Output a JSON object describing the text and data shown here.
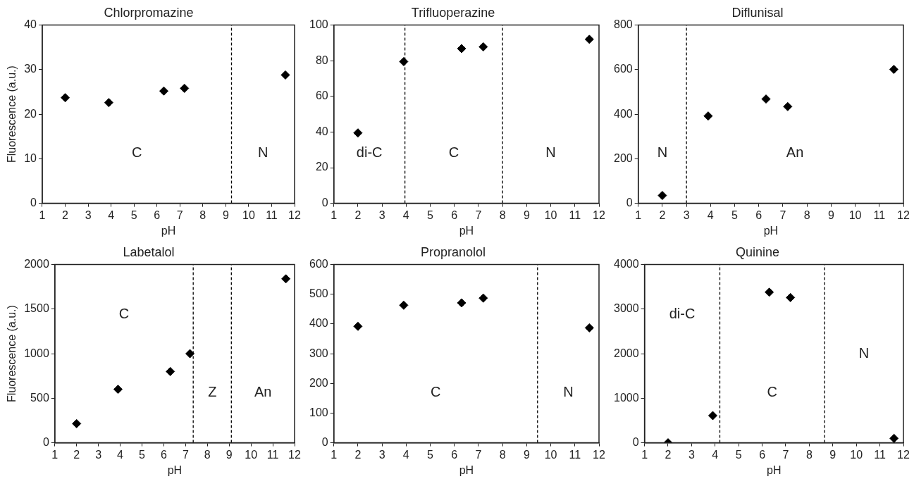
{
  "chart_data": [
    {
      "type": "scatter",
      "title": "Chlorpromazine",
      "xlabel": "pH",
      "ylabel": "Fluorescence (a.u.)",
      "x": [
        2,
        3.9,
        6.3,
        7.2,
        11.6
      ],
      "values": [
        23.7,
        22.6,
        25.2,
        25.8,
        28.8
      ],
      "color": "#000000",
      "marker": "diamond",
      "xlim": [
        1,
        12
      ],
      "xticks": [
        1,
        2,
        3,
        4,
        5,
        6,
        7,
        8,
        9,
        10,
        11,
        12
      ],
      "ylim": [
        0,
        40
      ],
      "yticks": [
        0,
        10,
        20,
        30,
        40
      ],
      "grid": false,
      "legend": false,
      "ref_lines": [
        {
          "axis": "x",
          "value": 9.25,
          "line_style": "dashed",
          "color": "#000000"
        }
      ],
      "annotations": [
        "C",
        "N"
      ]
    },
    {
      "type": "scatter",
      "title": "Trifluoperazine",
      "xlabel": "pH",
      "x": [
        2,
        3.9,
        6.3,
        7.2,
        11.6
      ],
      "values": [
        39.5,
        79.5,
        86.8,
        87.8,
        92
      ],
      "color": "#000000",
      "marker": "diamond",
      "xlim": [
        1,
        12
      ],
      "xticks": [
        1,
        2,
        3,
        4,
        5,
        6,
        7,
        8,
        9,
        10,
        11,
        12
      ],
      "ylim": [
        0,
        100
      ],
      "yticks": [
        0,
        20,
        40,
        60,
        80,
        100
      ],
      "grid": false,
      "legend": false,
      "ref_lines": [
        {
          "axis": "x",
          "value": 3.95,
          "line_style": "dashed",
          "color": "#000000"
        },
        {
          "axis": "x",
          "value": 8,
          "line_style": "dashed",
          "color": "#000000"
        }
      ],
      "annotations": [
        "di-C",
        "C",
        "N"
      ]
    },
    {
      "type": "scatter",
      "title": "Diflunisal",
      "xlabel": "pH",
      "x": [
        2,
        3.9,
        6.3,
        7.2,
        11.6
      ],
      "values": [
        35,
        392,
        468,
        434,
        601
      ],
      "color": "#000000",
      "marker": "diamond",
      "xlim": [
        1,
        12
      ],
      "xticks": [
        1,
        2,
        3,
        4,
        5,
        6,
        7,
        8,
        9,
        10,
        11,
        12
      ],
      "ylim": [
        0,
        800
      ],
      "yticks": [
        0,
        200,
        400,
        600,
        800
      ],
      "grid": false,
      "legend": false,
      "ref_lines": [
        {
          "axis": "x",
          "value": 3,
          "line_style": "dashed",
          "color": "#000000"
        }
      ],
      "annotations": [
        "N",
        "An"
      ]
    },
    {
      "type": "scatter",
      "title": "Labetalol",
      "xlabel": "pH",
      "ylabel": "Fluorescence (a.u.)",
      "x": [
        2,
        3.9,
        6.3,
        7.2,
        11.6
      ],
      "values": [
        215,
        600,
        800,
        1000,
        1840
      ],
      "color": "#000000",
      "marker": "diamond",
      "xlim": [
        1,
        12
      ],
      "xticks": [
        1,
        2,
        3,
        4,
        5,
        6,
        7,
        8,
        9,
        10,
        11,
        12
      ],
      "ylim": [
        0,
        2000
      ],
      "yticks": [
        0,
        500,
        1000,
        1500,
        2000
      ],
      "grid": false,
      "legend": false,
      "ref_lines": [
        {
          "axis": "x",
          "value": 7.35,
          "line_style": "dashed",
          "color": "#000000"
        },
        {
          "axis": "x",
          "value": 9.1,
          "line_style": "dashed",
          "color": "#000000"
        }
      ],
      "annotations": [
        "C",
        "Z",
        "An"
      ]
    },
    {
      "type": "scatter",
      "title": "Propranolol",
      "xlabel": "pH",
      "x": [
        2,
        3.9,
        6.3,
        7.2,
        11.6
      ],
      "values": [
        392,
        463,
        471,
        487,
        387
      ],
      "color": "#000000",
      "marker": "diamond",
      "xlim": [
        1,
        12
      ],
      "xticks": [
        1,
        2,
        3,
        4,
        5,
        6,
        7,
        8,
        9,
        10,
        11,
        12
      ],
      "ylim": [
        0,
        600
      ],
      "yticks": [
        0,
        100,
        200,
        300,
        400,
        500,
        600
      ],
      "grid": false,
      "legend": false,
      "ref_lines": [
        {
          "axis": "x",
          "value": 9.45,
          "line_style": "dashed",
          "color": "#000000"
        }
      ],
      "annotations": [
        "C",
        "N"
      ]
    },
    {
      "type": "scatter",
      "title": "Quinine",
      "xlabel": "pH",
      "x": [
        2,
        3.9,
        6.3,
        7.2,
        11.6
      ],
      "values": [
        0,
        610,
        3380,
        3260,
        100
      ],
      "color": "#000000",
      "marker": "diamond",
      "xlim": [
        1,
        12
      ],
      "xticks": [
        1,
        2,
        3,
        4,
        5,
        6,
        7,
        8,
        9,
        10,
        11,
        12
      ],
      "ylim": [
        0,
        4000
      ],
      "yticks": [
        0,
        1000,
        2000,
        3000,
        4000
      ],
      "grid": false,
      "legend": false,
      "ref_lines": [
        {
          "axis": "x",
          "value": 4.2,
          "line_style": "dashed",
          "color": "#000000"
        },
        {
          "axis": "x",
          "value": 8.65,
          "line_style": "dashed",
          "color": "#000000"
        }
      ],
      "annotations": [
        "di-C",
        "C",
        "N"
      ]
    }
  ]
}
